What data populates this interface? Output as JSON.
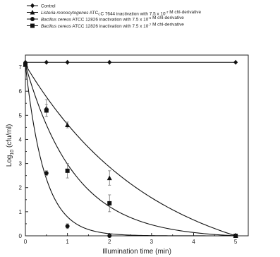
{
  "chart_data": {
    "type": "scatter",
    "xlabel": "Illumination time (min)",
    "ylabel": "Log",
    "ylabel_sub": "10",
    "ylabel_rest": " (cfu/ml)",
    "xlim": [
      0,
      5.3
    ],
    "ylim": [
      0,
      7.5
    ],
    "x_ticks": [
      0,
      1,
      2,
      3,
      4,
      5
    ],
    "y_ticks": [
      0,
      1,
      2,
      3,
      4,
      5,
      6,
      7
    ],
    "legend_position": "top",
    "grid": false,
    "legend": [
      {
        "parts": [
          {
            "t": "Control",
            "i": false
          }
        ]
      },
      {
        "parts": [
          {
            "t": "Listeria monocytogenes",
            "i": true
          },
          {
            "t": " ATC",
            "i": false
          },
          {
            "t": "C",
            "i": false,
            "sub": true
          },
          {
            "t": "C 7644 inactivation with 7.5 x 10",
            "i": false
          },
          {
            "t": "-7",
            "i": false,
            "sup": true
          },
          {
            "t": " M chl-derivative",
            "i": false
          }
        ]
      },
      {
        "parts": [
          {
            "t": "Bacillus cereus",
            "i": true
          },
          {
            "t": " ATCC 12826 inactivation with 7.5 x 10",
            "i": false
          },
          {
            "t": "-6",
            "i": false,
            "sup": true
          },
          {
            "t": " M chl-derivative",
            "i": false
          }
        ]
      },
      {
        "parts": [
          {
            "t": "Bacillus cereus",
            "i": true
          },
          {
            "t": " ATCC 12826 inactivation with 7.5 x 10",
            "i": false
          },
          {
            "t": "-7",
            "i": false,
            "sup": true
          },
          {
            "t": " M chl-derivative",
            "i": false
          }
        ]
      }
    ],
    "series": [
      {
        "name": "Control",
        "marker": "diamond",
        "x": [
          0,
          0.5,
          1,
          2,
          5
        ],
        "y": [
          7.2,
          7.2,
          7.2,
          7.2,
          7.2
        ],
        "err": [
          0,
          0,
          0,
          0,
          0
        ]
      },
      {
        "name": "Listeria monocytogenes ATCC 7644 inactivation with 7.5 x 10-7 M chl-derivative",
        "marker": "triangle",
        "x": [
          0,
          0.5,
          1,
          2,
          5
        ],
        "y": [
          7.1,
          5.3,
          4.6,
          2.4,
          0
        ],
        "err": [
          0,
          0.35,
          0.12,
          0.3,
          0
        ]
      },
      {
        "name": "Bacillus cereus ATCC 12826 inactivation with 7.5 x 10-6 M chl-derivative",
        "marker": "circle",
        "x": [
          0,
          0.5,
          1,
          2,
          5
        ],
        "y": [
          7.1,
          2.6,
          0.4,
          0,
          0
        ],
        "err": [
          0,
          0.1,
          0.1,
          0,
          0
        ]
      },
      {
        "name": "Bacillus cereus ATCC 12826 inactivation with 7.5 x 10-7 M chl-derivative",
        "marker": "square",
        "x": [
          0,
          0.5,
          1,
          2,
          5
        ],
        "y": [
          7.1,
          5.2,
          2.7,
          1.35,
          0
        ],
        "err": [
          0,
          0.25,
          0.3,
          0.35,
          0
        ]
      }
    ]
  }
}
